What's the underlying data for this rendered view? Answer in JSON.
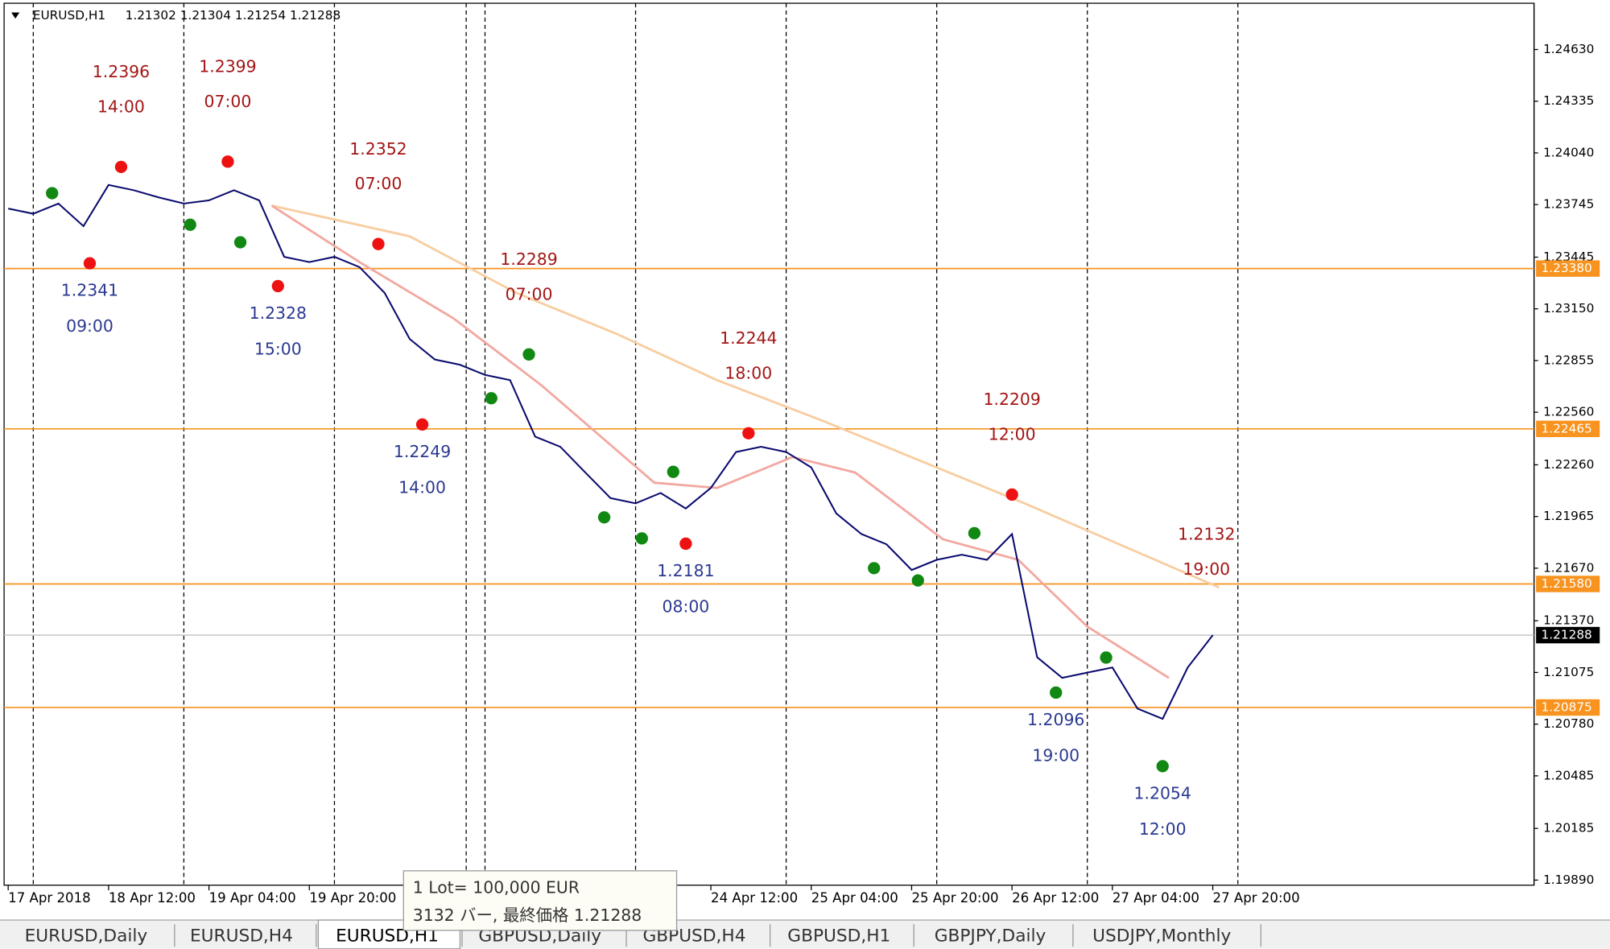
{
  "header": {
    "title": "EURUSD,H1",
    "quote": "1.21302 1.21304 1.21254 1.21288"
  },
  "tabs": [
    "EURUSD,Daily",
    "EURUSD,H4",
    "EURUSD,H1",
    "GBPUSD,Daily",
    "GBPUSD,H4",
    "GBPUSD,H1",
    "GBPJPY,Daily",
    "USDJPY,Monthly"
  ],
  "active_tab": "EURUSD,H1",
  "tooltip": {
    "line1": "1 Lot= 100,000 EUR",
    "line2": "3132 バー, 最終価格 1.21288"
  },
  "chart_data": {
    "type": "line",
    "xlim": [
      -0.65,
      243.2
    ],
    "ylim": [
      1.19861,
      1.24894
    ],
    "xticks": [
      {
        "value": 0,
        "label": "17 Apr 2018"
      },
      {
        "value": 16,
        "label": "18 Apr 12:00"
      },
      {
        "value": 32,
        "label": "19 Apr 04:00"
      },
      {
        "value": 48,
        "label": "19 Apr 20:00"
      },
      {
        "value": 112,
        "label": "24 Apr 12:00"
      },
      {
        "value": 128,
        "label": "25 Apr 04:00"
      },
      {
        "value": 144,
        "label": "25 Apr 20:00"
      },
      {
        "value": 160,
        "label": "26 Apr 12:00"
      },
      {
        "value": 176,
        "label": "27 Apr 04:00"
      },
      {
        "value": 192,
        "label": "27 Apr 20:00"
      }
    ],
    "yticks": [
      {
        "value": 1.2463,
        "label": "1.24630"
      },
      {
        "value": 1.24335,
        "label": "1.24335"
      },
      {
        "value": 1.2404,
        "label": "1.24040"
      },
      {
        "value": 1.23745,
        "label": "1.23745"
      },
      {
        "value": 1.23445,
        "label": "1.23445"
      },
      {
        "value": 1.2315,
        "label": "1.23150"
      },
      {
        "value": 1.22855,
        "label": "1.22855"
      },
      {
        "value": 1.2256,
        "label": "1.22560"
      },
      {
        "value": 1.2226,
        "label": "1.22260"
      },
      {
        "value": 1.21965,
        "label": "1.21965"
      },
      {
        "value": 1.2167,
        "label": "1.21670"
      },
      {
        "value": 1.2137,
        "label": "1.21370"
      },
      {
        "value": 1.21075,
        "label": "1.21075"
      },
      {
        "value": 1.2078,
        "label": "1.20780"
      },
      {
        "value": 1.20485,
        "label": "1.20485"
      },
      {
        "value": 1.20185,
        "label": "1.20185"
      },
      {
        "value": 1.1989,
        "label": "1.19890"
      }
    ],
    "separators": [
      4,
      28,
      52,
      73,
      76,
      100,
      124,
      148,
      172,
      196
    ],
    "levels": [
      {
        "value": 1.2338,
        "label": "1.23380"
      },
      {
        "value": 1.22465,
        "label": "1.22465"
      },
      {
        "value": 1.2158,
        "label": "1.21580"
      },
      {
        "value": 1.20875,
        "label": "1.20875"
      }
    ],
    "level_color": "#f7931e",
    "current_price": {
      "value": 1.21288,
      "label": "1.21288"
    },
    "series": [
      {
        "color": "#0a0a6e",
        "x": [
          0,
          4,
          8,
          12,
          16,
          20,
          24,
          28,
          32,
          36,
          40,
          44,
          48,
          52,
          56,
          60,
          64,
          68,
          72,
          76,
          80,
          84,
          88,
          92,
          96,
          100,
          104,
          108,
          112,
          116,
          120,
          124,
          128,
          132,
          136,
          140,
          144,
          148,
          152,
          156,
          160,
          164,
          168,
          172,
          176,
          180,
          184,
          188,
          192
        ],
        "values": [
          1.23722,
          1.23693,
          1.23751,
          1.23622,
          1.23857,
          1.23827,
          1.23786,
          1.23751,
          1.23769,
          1.23827,
          1.23769,
          1.23447,
          1.23417,
          1.23447,
          1.23388,
          1.23241,
          1.22978,
          1.22861,
          1.22831,
          1.22773,
          1.22743,
          1.22421,
          1.22363,
          1.22216,
          1.2207,
          1.2204,
          1.22099,
          1.22011,
          1.22128,
          1.22333,
          1.22363,
          1.22333,
          1.22245,
          1.21982,
          1.21865,
          1.21806,
          1.2166,
          1.21718,
          1.21747,
          1.21718,
          1.21865,
          1.21162,
          1.21044,
          1.21074,
          1.21103,
          1.20869,
          1.2081,
          1.21103,
          1.21288
        ]
      },
      {
        "color": "#f2a8a0",
        "x": [
          42,
          56,
          71,
          85,
          103,
          113,
          125,
          135,
          149,
          161,
          172,
          185
        ],
        "values": [
          1.23739,
          1.23417,
          1.23095,
          1.22714,
          1.22158,
          1.22128,
          1.22304,
          1.22216,
          1.21835,
          1.21718,
          1.21337,
          1.21044
        ]
      },
      {
        "color": "#f8cda0",
        "x": [
          42,
          64,
          81,
          97,
          113,
          130,
          146,
          162,
          179,
          193
        ],
        "values": [
          1.23739,
          1.23564,
          1.23241,
          1.23007,
          1.22743,
          1.22509,
          1.22274,
          1.2204,
          1.21777,
          1.2156
        ]
      }
    ],
    "high_text_color": "#a31515",
    "low_text_color": "#2b3990",
    "swing_labels": [
      {
        "side": "high",
        "x": 18,
        "price": 1.2396,
        "time": "14:00",
        "color": "#ee1111"
      },
      {
        "side": "high",
        "x": 35,
        "price": 1.2399,
        "time": "07:00",
        "color": "#ee1111"
      },
      {
        "side": "high",
        "x": 59,
        "price": 1.2352,
        "time": "07:00",
        "color": "#ee1111"
      },
      {
        "side": "high",
        "x": 83,
        "price": 1.2289,
        "time": "07:00",
        "color": "#118811"
      },
      {
        "side": "high",
        "x": 118,
        "price": 1.2244,
        "time": "18:00",
        "color": "#ee1111"
      },
      {
        "side": "high",
        "x": 160,
        "price": 1.2209,
        "time": "12:00",
        "color": "#ee1111"
      },
      {
        "side": "high",
        "x": 191,
        "price": 1.2132,
        "time": "19:00"
      },
      {
        "side": "low",
        "x": 13,
        "price": 1.2341,
        "time": "09:00",
        "color": "#ee1111"
      },
      {
        "side": "low",
        "x": 43,
        "price": 1.2328,
        "time": "15:00",
        "color": "#ee1111"
      },
      {
        "side": "low",
        "x": 66,
        "price": 1.2249,
        "time": "14:00",
        "color": "#ee1111"
      },
      {
        "side": "low",
        "x": 108,
        "price": 1.2181,
        "time": "08:00",
        "color": "#ee1111"
      },
      {
        "side": "low",
        "x": 167,
        "price": 1.2096,
        "time": "19:00",
        "color": "#118811"
      },
      {
        "side": "low",
        "x": 184,
        "price": 1.2054,
        "time": "12:00",
        "color": "#118811"
      }
    ],
    "dot_color": "#118811",
    "swing_points": [
      {
        "x": 7,
        "price": 1.2381
      },
      {
        "x": 29,
        "price": 1.2363
      },
      {
        "x": 37,
        "price": 1.2353
      },
      {
        "x": 77,
        "price": 1.2264
      },
      {
        "x": 95,
        "price": 1.2196
      },
      {
        "x": 101,
        "price": 1.2184
      },
      {
        "x": 106,
        "price": 1.2222
      },
      {
        "x": 138,
        "price": 1.2167
      },
      {
        "x": 145,
        "price": 1.216
      },
      {
        "x": 154,
        "price": 1.2187
      },
      {
        "x": 175,
        "price": 1.2116
      }
    ]
  }
}
